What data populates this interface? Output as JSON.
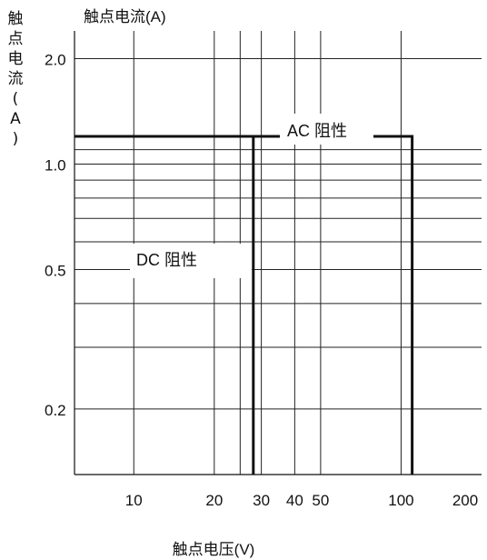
{
  "chart_data": {
    "type": "line",
    "title": "触点电流(A)",
    "xlabel": "触点电压(V)",
    "ylabel": "触点电流(A)",
    "x_scale": "log",
    "y_scale": "log",
    "xlim": [
      6,
      200
    ],
    "ylim": [
      0.13,
      2.4
    ],
    "x_ticks": [
      10,
      20,
      30,
      40,
      50,
      100,
      200
    ],
    "x_tick_labels": [
      "10",
      "20",
      "30",
      "40",
      "50",
      "100",
      "200"
    ],
    "y_tick_labels": [
      {
        "value": 2.0,
        "label": "2.0"
      },
      {
        "value": 1.0,
        "label": "1.0"
      },
      {
        "value": 0.5,
        "label": "0.5"
      },
      {
        "value": 0.2,
        "label": "0.2"
      }
    ],
    "grid": true,
    "series": [
      {
        "name": "AC 阻性",
        "x": [
          6,
          110,
          110
        ],
        "y": [
          1.2,
          1.2,
          0.13
        ]
      },
      {
        "name": "DC 阻性",
        "x": [
          6,
          28,
          28
        ],
        "y": [
          1.2,
          1.2,
          0.13
        ]
      }
    ]
  }
}
